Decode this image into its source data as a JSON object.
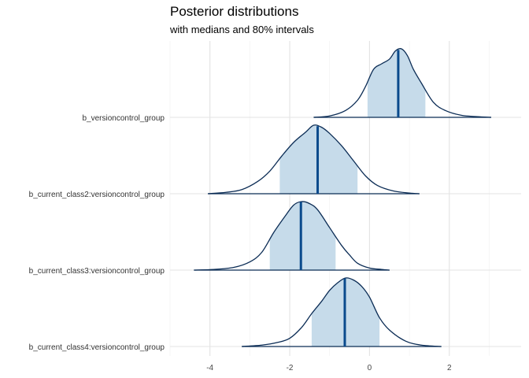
{
  "chart_data": {
    "type": "ridgeline",
    "title": "Posterior distributions",
    "subtitle": "with medians and 80% intervals",
    "xlim": [
      -5,
      3.8
    ],
    "x_ticks": [
      -4,
      -2,
      0,
      2
    ],
    "x_tick_labels": [
      "-4",
      "-2",
      "0",
      "2"
    ],
    "grid": true,
    "series": [
      {
        "name": "b_versioncontrol_group",
        "median": 0.72,
        "interval_80": [
          -0.05,
          1.4
        ],
        "range": [
          -1.4,
          3.05
        ],
        "density_x": [
          -1.4,
          -1.0,
          -0.6,
          -0.3,
          -0.1,
          0.1,
          0.3,
          0.5,
          0.65,
          0.8,
          0.95,
          1.1,
          1.3,
          1.6,
          1.9,
          2.3,
          2.7,
          3.05
        ],
        "density_y": [
          0.0,
          0.02,
          0.1,
          0.25,
          0.45,
          0.7,
          0.78,
          0.85,
          0.97,
          1.0,
          0.9,
          0.7,
          0.5,
          0.22,
          0.1,
          0.03,
          0.01,
          0.0
        ]
      },
      {
        "name": "b_current_class2:versioncontrol_group",
        "median": -1.3,
        "interval_80": [
          -2.25,
          -0.3
        ],
        "range": [
          -4.05,
          1.25
        ],
        "density_x": [
          -4.05,
          -3.6,
          -3.2,
          -2.8,
          -2.5,
          -2.2,
          -1.9,
          -1.6,
          -1.4,
          -1.2,
          -1.0,
          -0.7,
          -0.4,
          -0.1,
          0.2,
          0.6,
          1.0,
          1.25
        ],
        "density_y": [
          0.0,
          0.02,
          0.06,
          0.18,
          0.33,
          0.55,
          0.75,
          0.9,
          1.0,
          0.97,
          0.88,
          0.7,
          0.48,
          0.26,
          0.12,
          0.04,
          0.01,
          0.0
        ]
      },
      {
        "name": "b_current_class3:versioncontrol_group",
        "median": -1.72,
        "interval_80": [
          -2.5,
          -0.85
        ],
        "range": [
          -4.4,
          0.5
        ],
        "density_x": [
          -4.4,
          -3.9,
          -3.4,
          -3.0,
          -2.7,
          -2.4,
          -2.1,
          -1.9,
          -1.7,
          -1.5,
          -1.3,
          -1.0,
          -0.7,
          -0.5,
          -0.3,
          0.0,
          0.3,
          0.5
        ],
        "density_y": [
          0.0,
          0.01,
          0.04,
          0.12,
          0.26,
          0.55,
          0.8,
          0.95,
          1.0,
          0.97,
          0.88,
          0.62,
          0.36,
          0.22,
          0.1,
          0.03,
          0.01,
          0.0
        ]
      },
      {
        "name": "b_current_class4:versioncontrol_group",
        "median": -0.62,
        "interval_80": [
          -1.45,
          0.25
        ],
        "range": [
          -3.2,
          1.8
        ],
        "density_x": [
          -3.2,
          -2.7,
          -2.3,
          -2.0,
          -1.7,
          -1.45,
          -1.2,
          -1.0,
          -0.8,
          -0.6,
          -0.4,
          -0.2,
          0.0,
          0.25,
          0.5,
          0.9,
          1.3,
          1.8
        ],
        "density_y": [
          0.0,
          0.02,
          0.06,
          0.12,
          0.28,
          0.48,
          0.66,
          0.82,
          0.93,
          1.0,
          0.97,
          0.88,
          0.72,
          0.42,
          0.24,
          0.08,
          0.02,
          0.0
        ]
      }
    ]
  }
}
